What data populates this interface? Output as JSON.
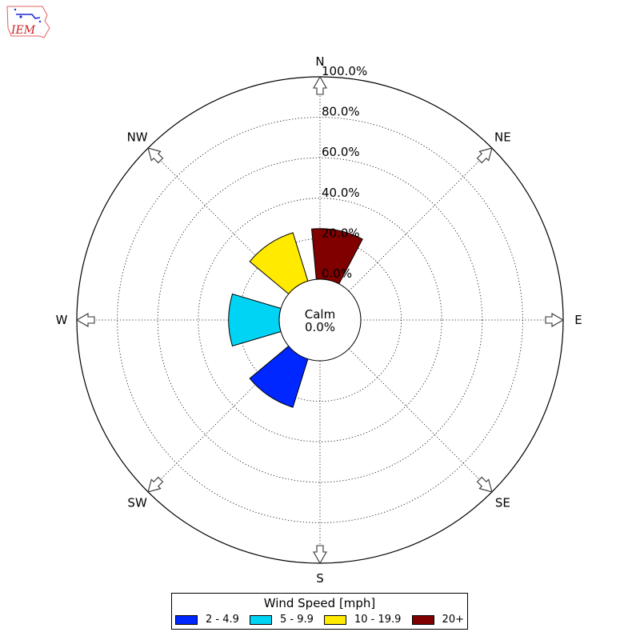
{
  "branding": {
    "logo_text": "IEM"
  },
  "chart_data": {
    "type": "windrose",
    "directions": [
      "N",
      "NW",
      "W",
      "SW",
      "S",
      "SE",
      "E",
      "NE"
    ],
    "direction_angles_deg": [
      0,
      315,
      270,
      225,
      180,
      135,
      90,
      45
    ],
    "radial_ticks": [
      "0.0%",
      "20.0%",
      "40.0%",
      "60.0%",
      "80.0%",
      "100.0%"
    ],
    "radial_tick_values": [
      0,
      20,
      40,
      60,
      80,
      100
    ],
    "rlim": [
      0,
      100
    ],
    "grid": true,
    "calm": {
      "label": "Calm",
      "value": "0.0%"
    },
    "series": [
      {
        "name": "2 - 4.9",
        "color": "#0027ff",
        "direction_deg": 213.75,
        "value": 25,
        "width_deg": 33
      },
      {
        "name": "5 - 9.9",
        "color": "#00d4f5",
        "direction_deg": 270,
        "value": 25,
        "width_deg": 33
      },
      {
        "name": "10 - 19.9",
        "color": "#ffea00",
        "direction_deg": 326.25,
        "value": 25,
        "width_deg": 33
      },
      {
        "name": "20+",
        "color": "#800000",
        "direction_deg": 11.25,
        "value": 25,
        "width_deg": 33
      }
    ],
    "legend": {
      "title": "Wind Speed [mph]",
      "placement": "bottom"
    }
  }
}
